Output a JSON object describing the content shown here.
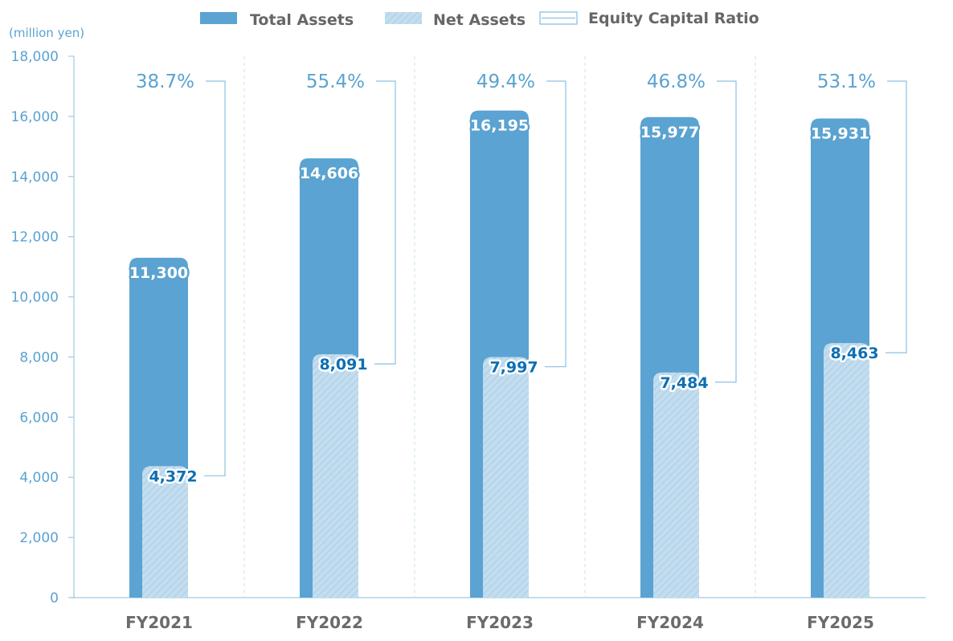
{
  "chart_data": {
    "type": "bar",
    "unit_label": "(million yen)",
    "categories": [
      "FY2021",
      "FY2022",
      "FY2023",
      "FY2024",
      "FY2025"
    ],
    "series": [
      {
        "name": "Total Assets",
        "values": [
          11300,
          14606,
          16195,
          15977,
          15931
        ],
        "labels": [
          "11,300",
          "14,606",
          "16,195",
          "15,977",
          "15,931"
        ],
        "color": "#5ba3d2"
      },
      {
        "name": "Net Assets",
        "values": [
          4372,
          8091,
          7997,
          7484,
          8463
        ],
        "labels": [
          "4,372",
          "8,091",
          "7,997",
          "7,484",
          "8,463"
        ],
        "color": "#b9d7ec"
      },
      {
        "name": "Equity Capital Ratio",
        "values": [
          38.7,
          55.4,
          49.4,
          46.8,
          53.1
        ],
        "labels": [
          "38.7%",
          "55.4%",
          "49.4%",
          "46.8%",
          "53.1%"
        ],
        "color": "#8cc0e0"
      }
    ],
    "ylim": [
      0,
      18000
    ],
    "yticks": [
      "0",
      "2,000",
      "4,000",
      "6,000",
      "8,000",
      "10,000",
      "12,000",
      "14,000",
      "16,000",
      "18,000"
    ],
    "legend_position": "top-center",
    "grid": "vertical dashed separators between categories"
  }
}
